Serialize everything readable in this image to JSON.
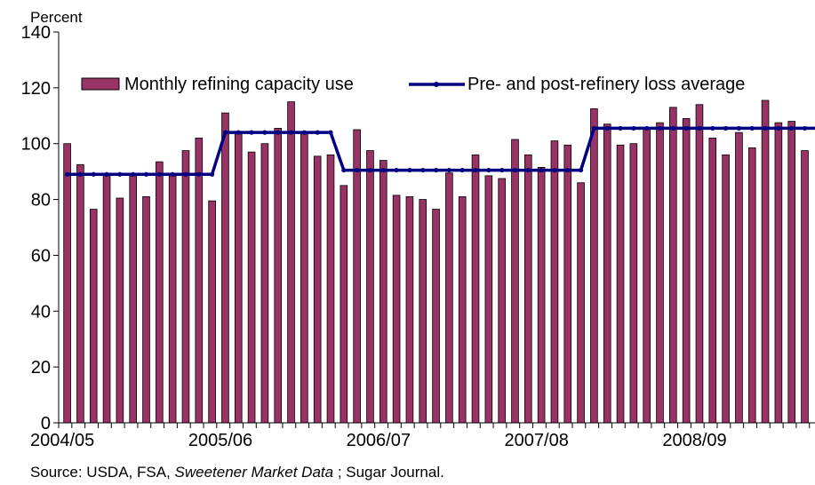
{
  "chart_data": {
    "type": "bar",
    "title": "",
    "ylabel": "Percent",
    "xlabel": "",
    "ylim": [
      0,
      140
    ],
    "yticks": [
      0,
      20,
      40,
      60,
      80,
      100,
      120,
      140
    ],
    "xticks": [
      {
        "index": 0,
        "label": "2004/05"
      },
      {
        "index": 12,
        "label": "2005/06"
      },
      {
        "index": 24,
        "label": "2006/07"
      },
      {
        "index": 36,
        "label": "2007/08"
      },
      {
        "index": 48,
        "label": "2008/09"
      }
    ],
    "grid": false,
    "legend_position": "top",
    "series": [
      {
        "name": "Monthly refining capacity use",
        "kind": "bar",
        "color": "#993366",
        "values": [
          100,
          92.5,
          76.5,
          88.5,
          80.5,
          88.5,
          81,
          93.5,
          88.5,
          97.5,
          102,
          79.5,
          111,
          103.5,
          97,
          100,
          105.5,
          115,
          103.5,
          95.5,
          96,
          85,
          105,
          97.5,
          94,
          81.5,
          81,
          80,
          76.5,
          89.5,
          81,
          96,
          88.5,
          87.5,
          101.5,
          96,
          91.5,
          101,
          99.5,
          86,
          112.5,
          107,
          99.5,
          100,
          105.5,
          107.5,
          113,
          109,
          114,
          102,
          96,
          104,
          98.5,
          115.5,
          107.5,
          108,
          97.5
        ]
      },
      {
        "name": "Pre- and post-refinery loss average",
        "kind": "line",
        "color": "#000080",
        "values": [
          89,
          89,
          89,
          89,
          89,
          89,
          89,
          89,
          89,
          89,
          89,
          89,
          104,
          104,
          104,
          104,
          104,
          104,
          104,
          104,
          104,
          90.5,
          90.5,
          90.5,
          90.5,
          90.5,
          90.5,
          90.5,
          90.5,
          90.5,
          90.5,
          90.5,
          90.5,
          90.5,
          90.5,
          90.5,
          90.5,
          90.5,
          90.5,
          90.5,
          105.5,
          105.5,
          105.5,
          105.5,
          105.5,
          105.5,
          105.5,
          105.5,
          105.5,
          105.5,
          105.5,
          105.5,
          105.5,
          105.5,
          105.5,
          105.5,
          105.5
        ]
      }
    ]
  },
  "source": {
    "prefix": "Source: USDA, FSA, ",
    "italic": "Sweetener Market Data",
    "suffix": " ; Sugar Journal."
  }
}
